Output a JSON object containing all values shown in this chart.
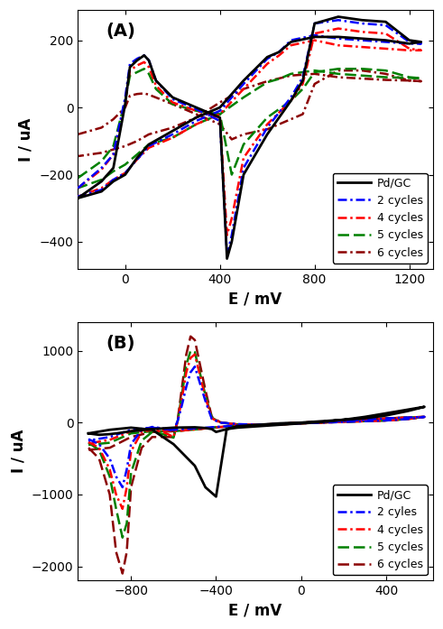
{
  "panel_A": {
    "title": "(A)",
    "xlabel": "E / mV",
    "ylabel": "I / uA",
    "xlim": [
      -200,
      1300
    ],
    "ylim": [
      -480,
      290
    ],
    "xticks": [
      0,
      400,
      800,
      1200
    ],
    "yticks": [
      -400,
      -200,
      0,
      200
    ],
    "bg_color": "#ffffff"
  },
  "panel_B": {
    "title": "(B)",
    "xlabel": "E / mV",
    "ylabel": "I / uA",
    "xlim": [
      -1050,
      620
    ],
    "ylim": [
      -2200,
      1400
    ],
    "xticks": [
      -800,
      -400,
      0,
      400
    ],
    "yticks": [
      -2000,
      -1000,
      0,
      1000
    ],
    "bg_color": "#ffffff"
  },
  "legend_labels": [
    "Pd/GC",
    "2 cycles",
    "4 cycles",
    "5 cycles",
    "6 cycles"
  ],
  "colors": [
    "#000000",
    "#0000ff",
    "#ff0000",
    "#008000",
    "#8b0000"
  ],
  "linestyles_A": [
    "solid",
    "dashdot",
    "dashdot",
    "dashed",
    "dashdot"
  ],
  "linestyles_B": [
    "solid",
    "dashdot",
    "dashdot",
    "dashed",
    "dashed"
  ],
  "linewidths": [
    2.0,
    1.8,
    1.8,
    1.8,
    1.8
  ]
}
